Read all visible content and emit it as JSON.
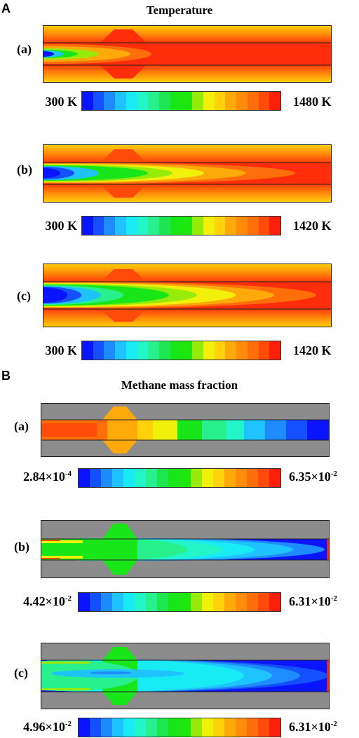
{
  "panel_a": {
    "letter": "A",
    "title": "Temperature",
    "rows": [
      {
        "label": "(a)",
        "cb_min": "300 K",
        "cb_max": "1480 K"
      },
      {
        "label": "(b)",
        "cb_min": "300 K",
        "cb_max": "1420 K"
      },
      {
        "label": "(c)",
        "cb_min": "300 K",
        "cb_max": "1420 K"
      }
    ]
  },
  "panel_b": {
    "letter": "B",
    "title": "Methane mass fraction",
    "rows": [
      {
        "label": "(a)",
        "cb_min_base": "2.84×10",
        "cb_min_exp": "-4",
        "cb_max_base": "6.35×10",
        "cb_max_exp": "-2"
      },
      {
        "label": "(b)",
        "cb_min_base": "4.42×10",
        "cb_min_exp": "-2",
        "cb_max_base": "6.31×10",
        "cb_max_exp": "-2"
      },
      {
        "label": "(c)",
        "cb_min_base": "4.96×10",
        "cb_min_exp": "-2",
        "cb_max_base": "6.31×10",
        "cb_max_exp": "-2"
      }
    ]
  },
  "colors": {
    "colormap": [
      "#0a14ff",
      "#1450ff",
      "#1e8cff",
      "#1ec3ff",
      "#19ebf5",
      "#23f5c8",
      "#28f08c",
      "#1ee650",
      "#19e619",
      "#1ee60f",
      "#96eb0a",
      "#f0f00a",
      "#ffd20a",
      "#ffaa0a",
      "#ff8c0a",
      "#ff6e0a",
      "#ff4b0a",
      "#ff1e0a"
    ],
    "solid_gray": "#8c8c8c"
  }
}
